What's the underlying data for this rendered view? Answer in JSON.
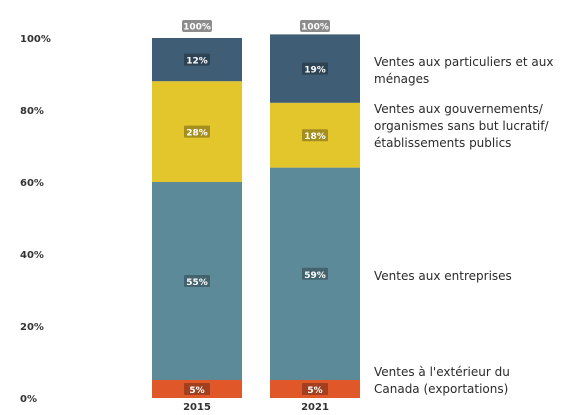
{
  "chart_data": {
    "type": "bar",
    "stacked": true,
    "orientation": "vertical",
    "categories": [
      "2015",
      "2021"
    ],
    "series": [
      {
        "name": "Ventes à l'extérieur du Canada (exportations)",
        "values": [
          5,
          5
        ],
        "labels": [
          "5%",
          "5%"
        ],
        "color": "#e0582a"
      },
      {
        "name": "Ventes aux entreprises",
        "values": [
          55,
          59
        ],
        "labels": [
          "55%",
          "59%"
        ],
        "color": "#5d8a99"
      },
      {
        "name": "Ventes aux gouvernements/ organismes sans but lucratif/établissements publics",
        "values": [
          28,
          18
        ],
        "labels": [
          "28%",
          "18%"
        ],
        "color": "#e3c52c"
      },
      {
        "name": "Ventes aux particuliers et aux ménages",
        "values": [
          12,
          19
        ],
        "labels": [
          "12%",
          "19%"
        ],
        "color": "#3f5d75"
      }
    ],
    "totals": [
      "100%",
      "100%"
    ],
    "yticks": [
      "0%",
      "20%",
      "40%",
      "60%",
      "80%",
      "100%"
    ],
    "ylim": [
      0,
      100
    ],
    "grid": false,
    "legend_position": "right",
    "title": "",
    "xlabel": "",
    "ylabel": ""
  },
  "colors": {
    "total_badge": "#8c8c8c",
    "label_text": "#ffffff",
    "axis_text": "#333333"
  },
  "legend": {
    "particuliers": "Ventes aux particuliers et aux ménages",
    "gouvernements": "Ventes aux gouvernements/ organismes sans but lucratif/établissements publics",
    "entreprises": "Ventes aux entreprises",
    "exportations": "Ventes à l'extérieur du Canada (exportations)"
  }
}
